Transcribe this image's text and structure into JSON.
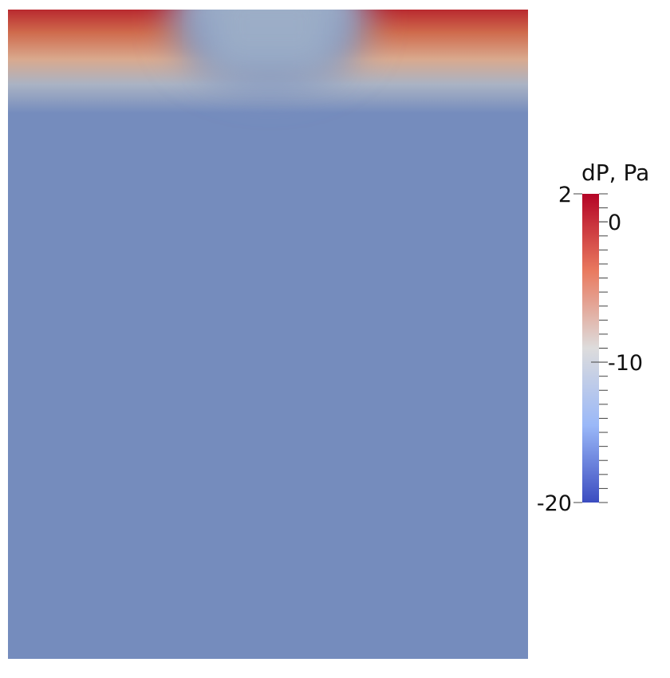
{
  "plot": {
    "background_color": "#758cbd",
    "hot_color": "#b92a2f"
  },
  "colorbar": {
    "title": "dP, Pa",
    "range": [
      -20,
      2
    ],
    "colors": {
      "top": "#b40426",
      "upper": "#e97a5f",
      "middle": "#dddcdc",
      "lower": "#9ab8f8",
      "bottom": "#3b4cc0"
    },
    "labels": [
      {
        "value": 2,
        "text": "2",
        "side": "left"
      },
      {
        "value": 0,
        "text": "0",
        "side": "right"
      },
      {
        "value": -10,
        "text": "-10",
        "side": "right"
      },
      {
        "value": -20,
        "text": "-20",
        "side": "left"
      }
    ]
  }
}
